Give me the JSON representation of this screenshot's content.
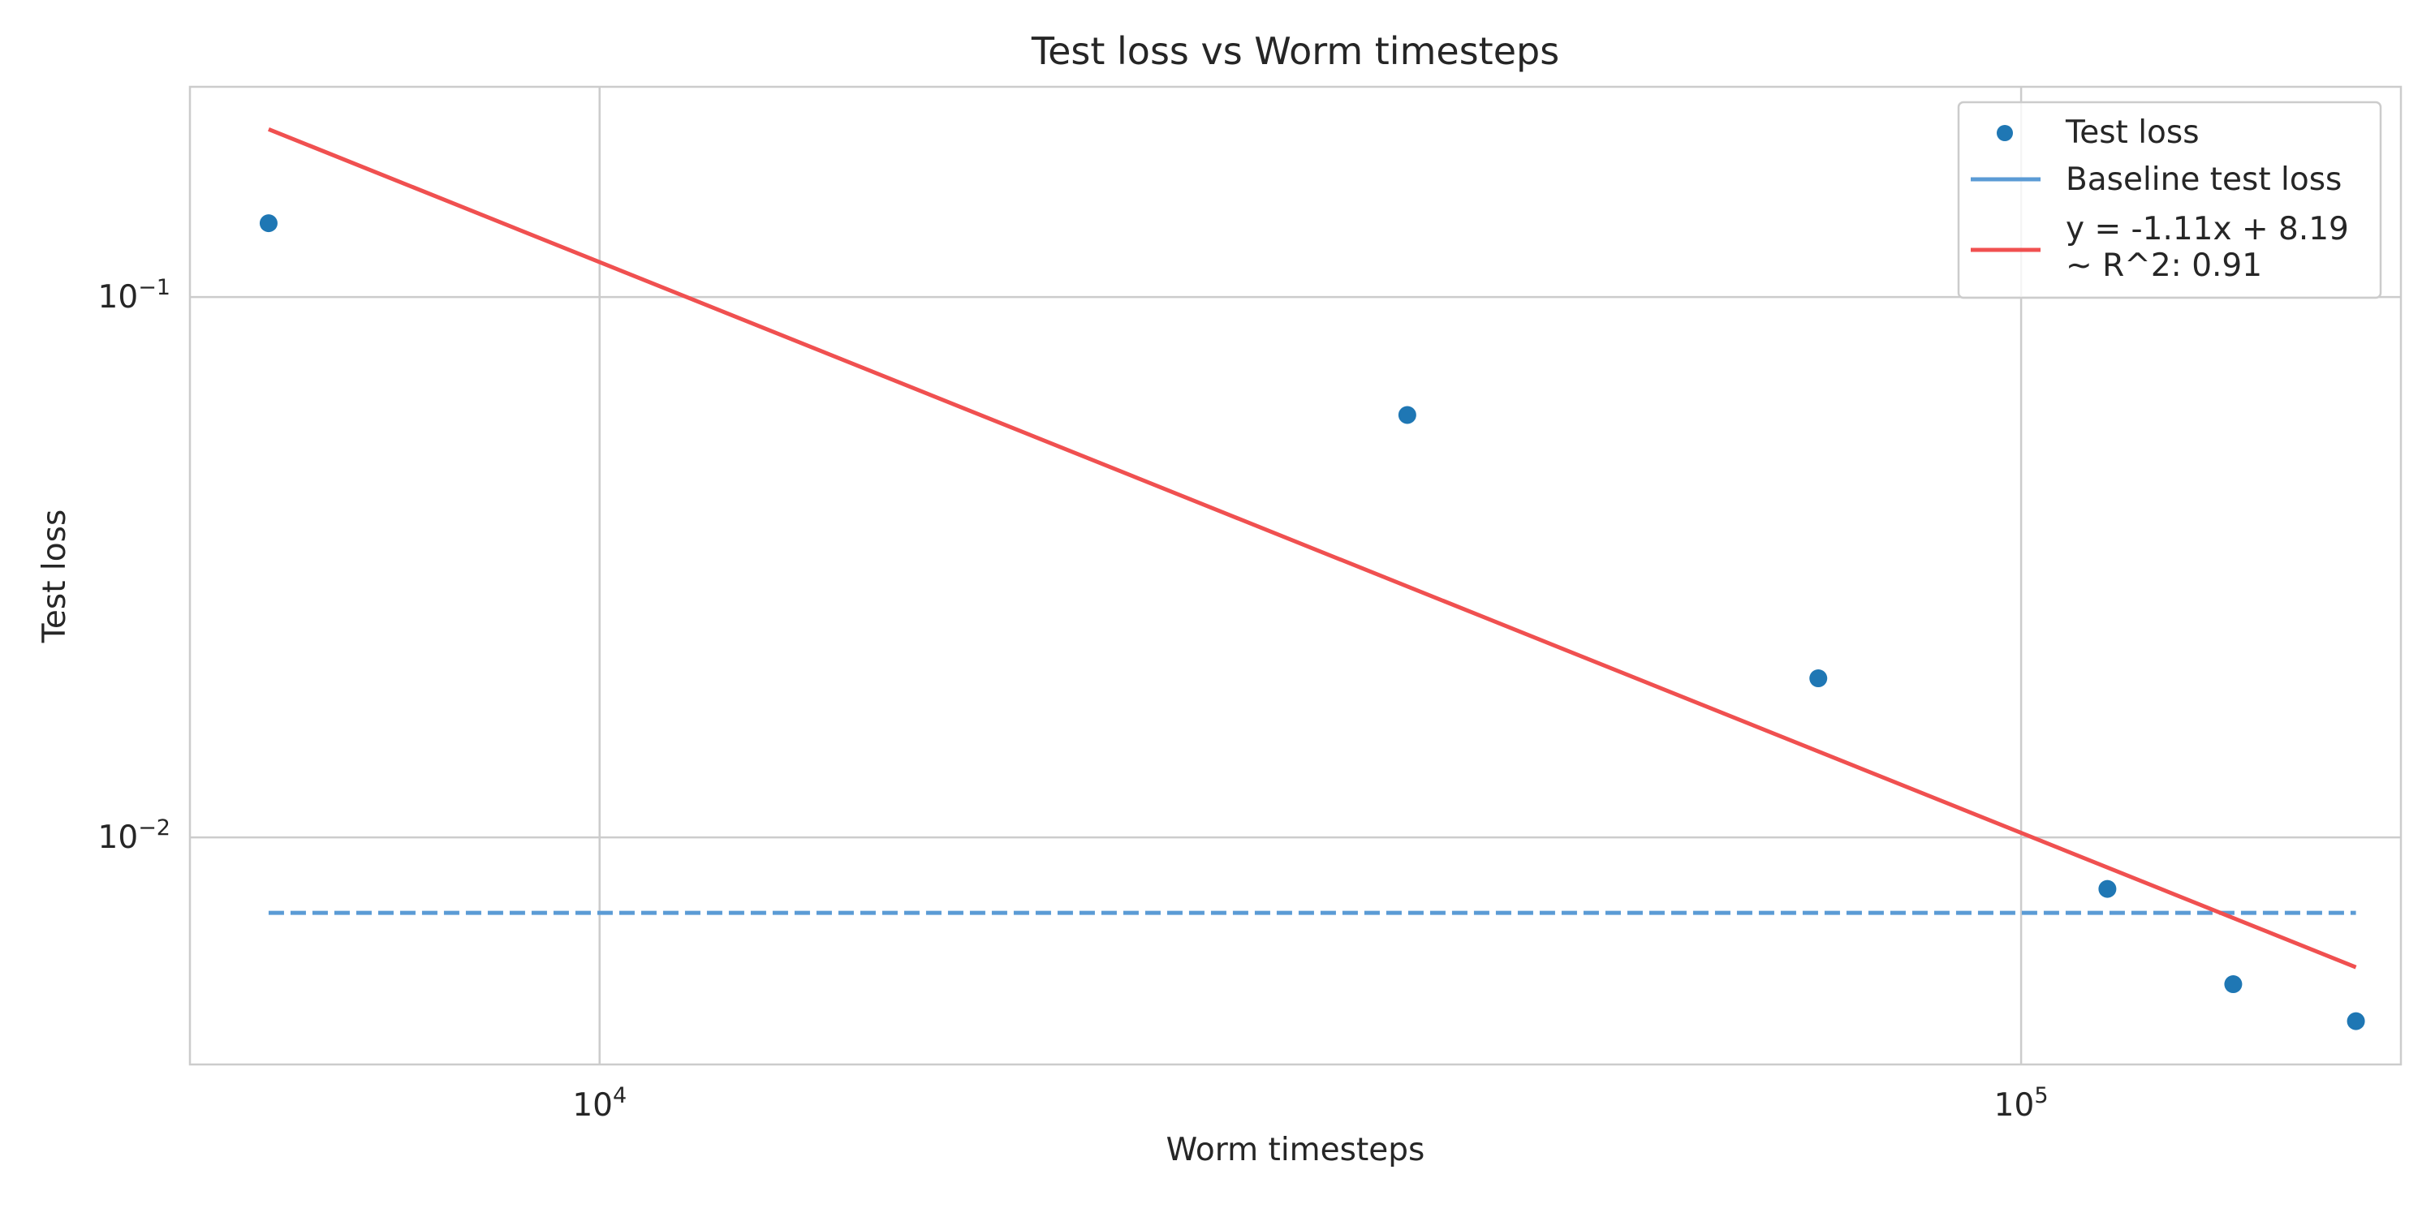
{
  "chart_data": {
    "type": "scatter",
    "title": "Test loss vs Worm timesteps",
    "xlabel": "Worm timesteps",
    "ylabel": "Test loss",
    "xscale": "log",
    "yscale": "log",
    "xlim": [
      5150,
      185000
    ],
    "ylim": [
      0.0038,
      0.245
    ],
    "grid": true,
    "legend_position": "top-right",
    "x_ticks": [
      {
        "value": 10000,
        "base": "10",
        "exp": "4"
      },
      {
        "value": 100000,
        "base": "10",
        "exp": "5"
      }
    ],
    "y_ticks": [
      {
        "value": 0.1,
        "base": "10",
        "exp": "−1"
      },
      {
        "value": 0.01,
        "base": "10",
        "exp": "−2"
      }
    ],
    "series": [
      {
        "name": "Test loss",
        "kind": "scatter",
        "color": "#1f77b4",
        "x": [
          5850,
          37000,
          72000,
          115000,
          141000,
          172000
        ],
        "y": [
          0.137,
          0.0605,
          0.0197,
          0.00803,
          0.00535,
          0.00457
        ]
      },
      {
        "name": "Baseline test loss",
        "kind": "hline",
        "style": "dashed",
        "color": "#5b9bd5",
        "x": [
          5850,
          172000
        ],
        "y": 0.00725
      },
      {
        "name": "y = -1.11x + 8.19\n~ R^2: 0.91",
        "kind": "line",
        "color": "#f05050",
        "x": [
          5850,
          172000
        ],
        "y": [
          0.2045,
          0.00575
        ]
      }
    ]
  }
}
